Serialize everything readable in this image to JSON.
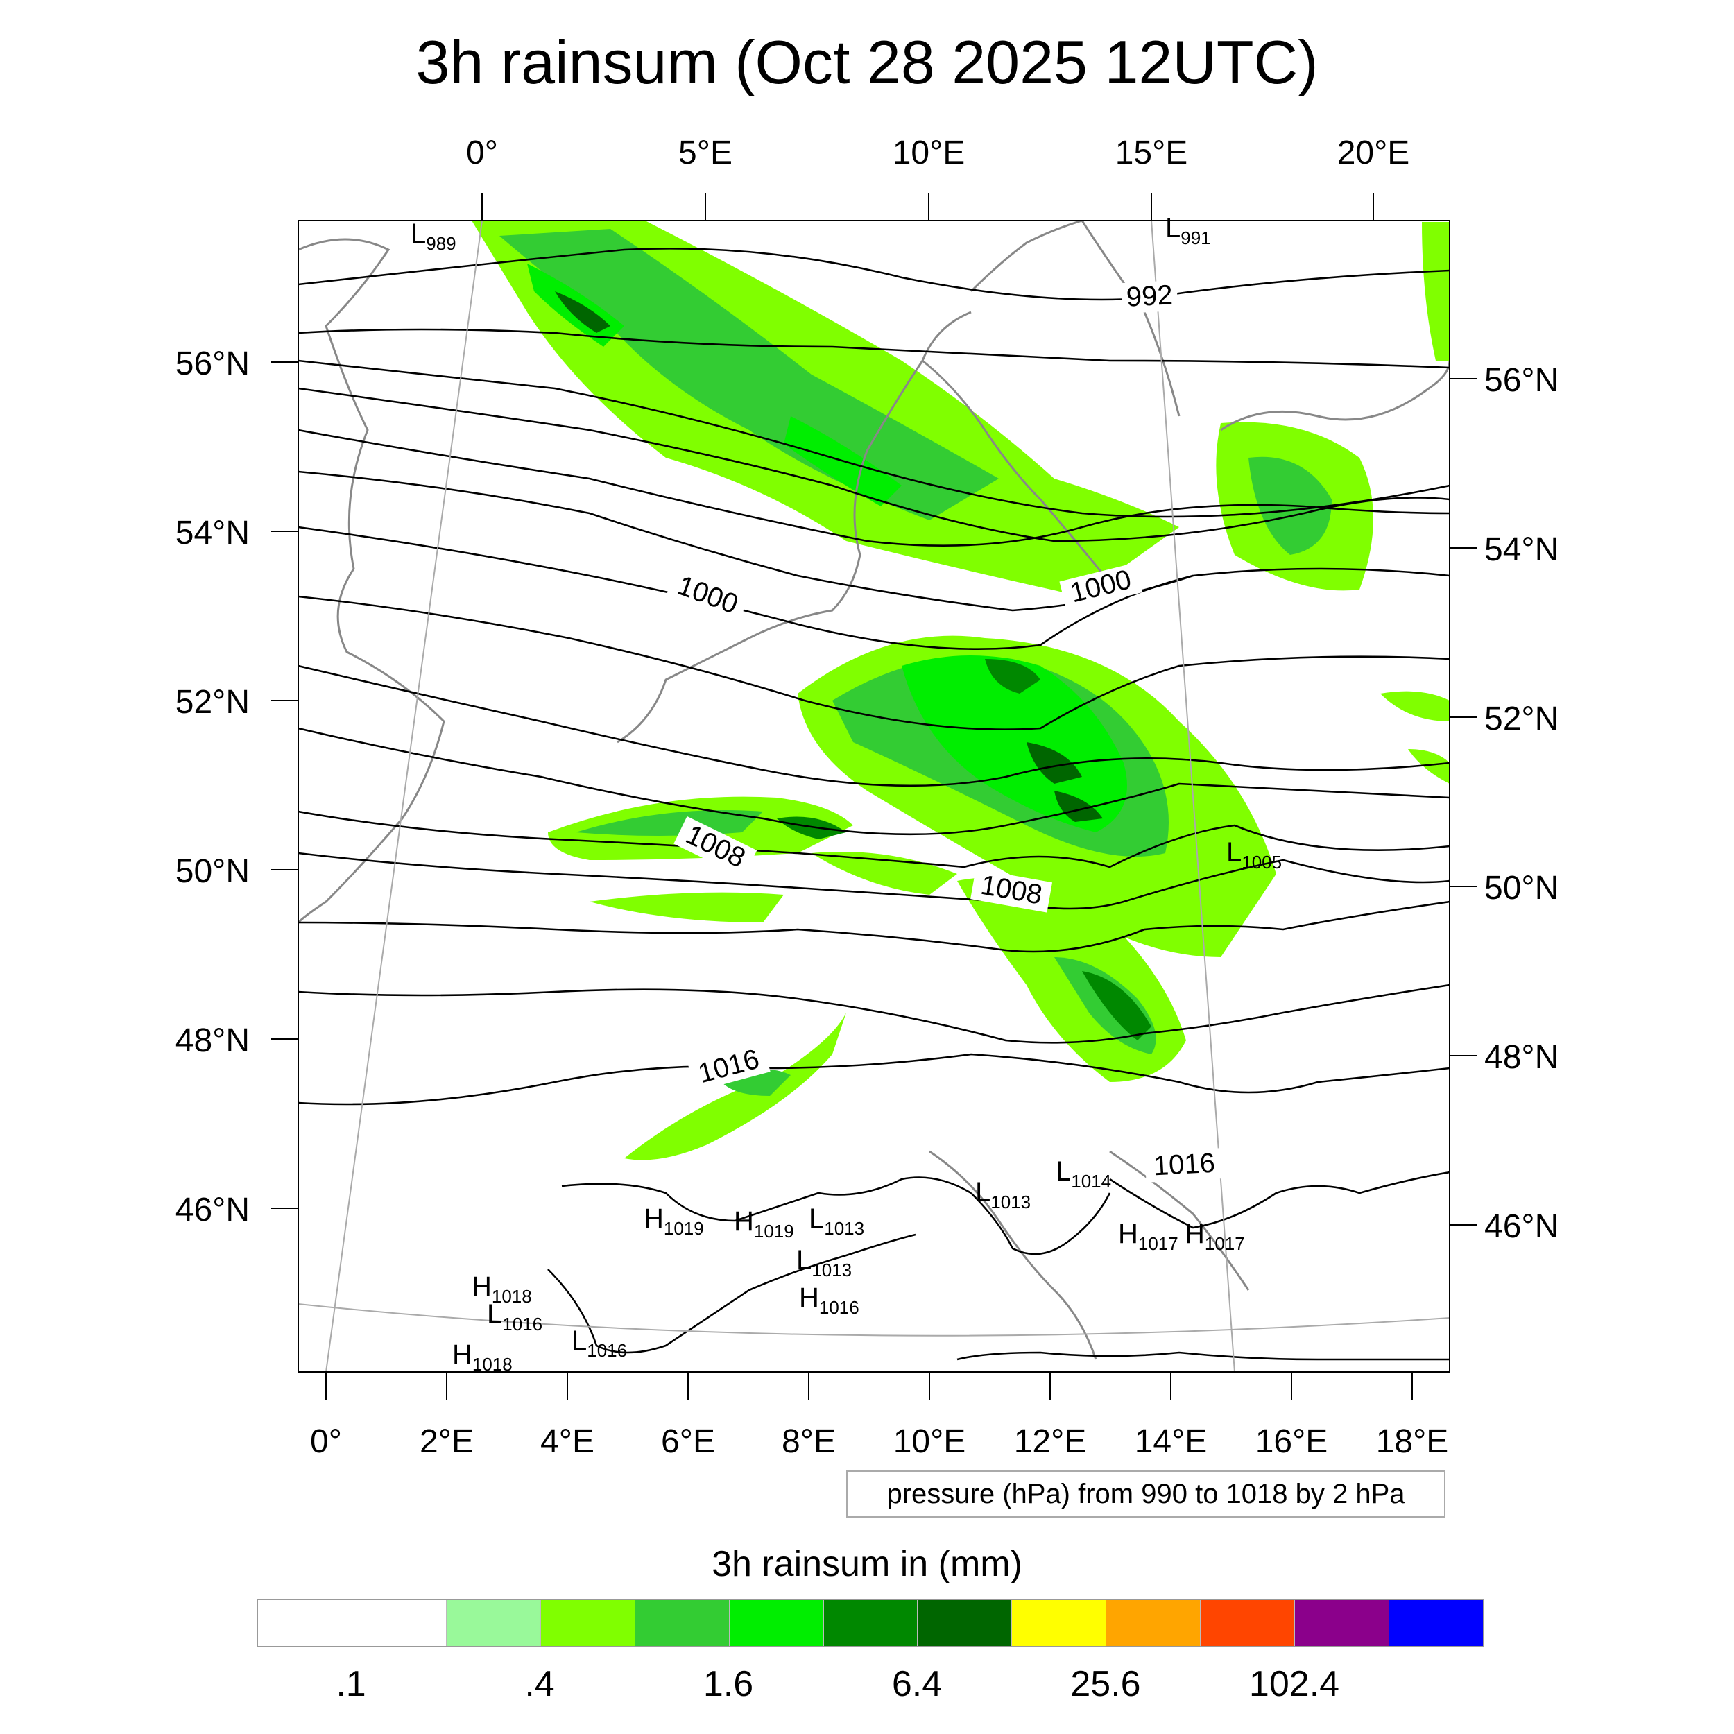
{
  "title": "3h rainsum (Oct 28 2025 12UTC)",
  "top_lon_labels": [
    "0°",
    "5°E",
    "10°E",
    "15°E",
    "20°E"
  ],
  "bottom_lon_labels": [
    "0°",
    "2°E",
    "4°E",
    "6°E",
    "8°E",
    "10°E",
    "12°E",
    "14°E",
    "16°E",
    "18°E"
  ],
  "left_lat_labels": [
    "56°N",
    "54°N",
    "52°N",
    "50°N",
    "48°N",
    "46°N"
  ],
  "right_lat_labels": [
    "56°N",
    "54°N",
    "52°N",
    "50°N",
    "48°N",
    "46°N"
  ],
  "contour_labels": [
    "992",
    "1000",
    "1000",
    "1008",
    "1008",
    "1016",
    "1016"
  ],
  "pressure_systems": [
    {
      "type": "L",
      "value": "989"
    },
    {
      "type": "L",
      "value": "991"
    },
    {
      "type": "L",
      "value": "1005"
    },
    {
      "type": "L",
      "value": "1014"
    },
    {
      "type": "L",
      "value": "1013"
    },
    {
      "type": "H",
      "value": "1019"
    },
    {
      "type": "H",
      "value": "1019"
    },
    {
      "type": "L",
      "value": "1013"
    },
    {
      "type": "L",
      "value": "1013"
    },
    {
      "type": "H",
      "value": "1016"
    },
    {
      "type": "H",
      "value": "1017"
    },
    {
      "type": "H",
      "value": "1017"
    },
    {
      "type": "H",
      "value": "1018"
    },
    {
      "type": "L",
      "value": "1016"
    },
    {
      "type": "L",
      "value": "1016"
    },
    {
      "type": "H",
      "value": "1018"
    }
  ],
  "pressure_note": "pressure (hPa) from 990 to 1018 by 2 hPa",
  "colorbar": {
    "title": "3h rainsum in (mm)",
    "colors": [
      "#ffffff",
      "#ffffff",
      "#99f99a",
      "#80ff00",
      "#33cc33",
      "#00ee00",
      "#008800",
      "#006600",
      "#ffff00",
      "#ffa500",
      "#ff4500",
      "#8b008b",
      "#0000ff"
    ],
    "labels": [
      ".1",
      ".4",
      "1.6",
      "6.4",
      "25.6",
      "102.4"
    ]
  }
}
